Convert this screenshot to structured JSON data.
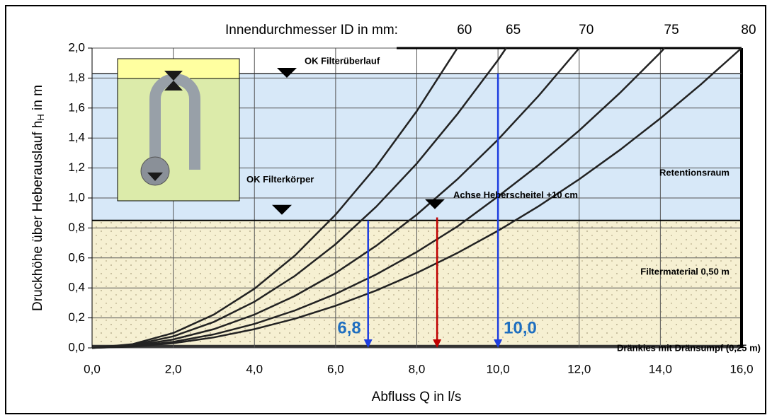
{
  "chart_data": {
    "type": "line",
    "header": "Innendurchmesser ID in mm:",
    "x_label": "Abfluss Q in l/s",
    "y_label": [
      "Druckhöhe über Heberauslauf  h",
      "H",
      " in m"
    ],
    "xlim": [
      0,
      16
    ],
    "ylim": [
      0,
      2
    ],
    "xticks": [
      {
        "value": 0,
        "label": "0,0"
      },
      {
        "value": 2,
        "label": "2,0"
      },
      {
        "value": 4,
        "label": "4,0"
      },
      {
        "value": 6,
        "label": "6,0"
      },
      {
        "value": 8,
        "label": "8,0"
      },
      {
        "value": 10,
        "label": "10,0"
      },
      {
        "value": 12,
        "label": "12,0"
      },
      {
        "value": 14,
        "label": "14,0"
      },
      {
        "value": 16,
        "label": "16,0"
      }
    ],
    "yticks": [
      {
        "value": 0,
        "label": "0,0"
      },
      {
        "value": 0.2,
        "label": "0,2"
      },
      {
        "value": 0.4,
        "label": "0,4"
      },
      {
        "value": 0.6,
        "label": "0,6"
      },
      {
        "value": 0.8,
        "label": "0,8"
      },
      {
        "value": 1,
        "label": "1,0"
      },
      {
        "value": 1.2,
        "label": "1,2"
      },
      {
        "value": 1.4,
        "label": "1,4"
      },
      {
        "value": 1.6,
        "label": "1,6"
      },
      {
        "value": 1.8,
        "label": "1,8"
      },
      {
        "value": 2,
        "label": "2,0"
      }
    ],
    "grid": true,
    "zones": [
      {
        "name": "Retentionsraum",
        "from": 0.85,
        "to": 1.83,
        "color": "#d7e8f8"
      },
      {
        "name": "Filtermaterial 0,50 m",
        "from": 0,
        "to": 0.85,
        "color": "#f6f0d2"
      },
      {
        "name": "Dränkies mit Dränsumpf (0,25 m)",
        "from": 0,
        "to": 0.02,
        "color": "#333333"
      }
    ],
    "annotations": [
      "OK Filterüberlauf",
      "OK Filterkörper",
      "Achse Heberscheitel +10 cm"
    ],
    "markers": [
      {
        "x": 6.8,
        "top": 0.85,
        "label": "6,8",
        "color": "#1f3fe0"
      },
      {
        "x": 8.5,
        "top": 0.87,
        "color": "#c00000"
      },
      {
        "x": 10,
        "top": 1.83,
        "label": "10,0",
        "color": "#1f3fe0"
      }
    ],
    "series": [
      {
        "name": "60",
        "color": "#222222",
        "x": [
          0,
          1,
          2,
          3,
          4,
          5,
          6,
          7,
          8,
          9
        ],
        "values": [
          0,
          0.025,
          0.099,
          0.222,
          0.395,
          0.617,
          0.889,
          1.21,
          1.58,
          2.0
        ]
      },
      {
        "name": "65",
        "color": "#222222",
        "x": [
          0,
          1,
          2,
          3,
          4,
          5,
          6,
          7,
          8,
          9,
          10,
          10.2
        ],
        "values": [
          0,
          0.019,
          0.077,
          0.173,
          0.308,
          0.481,
          0.692,
          0.942,
          1.23,
          1.56,
          1.92,
          2.0
        ]
      },
      {
        "name": "70",
        "color": "#222222",
        "x": [
          0,
          1,
          2,
          3,
          4,
          5,
          6,
          7,
          8,
          9,
          10,
          11,
          12
        ],
        "values": [
          0,
          0.014,
          0.056,
          0.125,
          0.222,
          0.347,
          0.5,
          0.681,
          0.889,
          1.125,
          1.389,
          1.681,
          2.0
        ]
      },
      {
        "name": "75",
        "color": "#222222",
        "x": [
          0,
          1,
          2,
          3,
          4,
          5,
          6,
          7,
          8,
          9,
          10,
          11,
          12,
          13,
          14,
          14.1
        ],
        "values": [
          0,
          0.01,
          0.04,
          0.09,
          0.16,
          0.25,
          0.36,
          0.49,
          0.64,
          0.81,
          1.01,
          1.22,
          1.45,
          1.7,
          1.97,
          2.0
        ]
      },
      {
        "name": "80",
        "color": "#222222",
        "x": [
          0,
          1,
          2,
          3,
          4,
          5,
          6,
          7,
          8,
          9,
          10,
          11,
          12,
          13,
          14,
          15,
          16
        ],
        "values": [
          0,
          0.008,
          0.031,
          0.07,
          0.125,
          0.195,
          0.281,
          0.383,
          0.5,
          0.633,
          0.781,
          0.945,
          1.125,
          1.32,
          1.531,
          1.758,
          2.0
        ]
      }
    ]
  }
}
